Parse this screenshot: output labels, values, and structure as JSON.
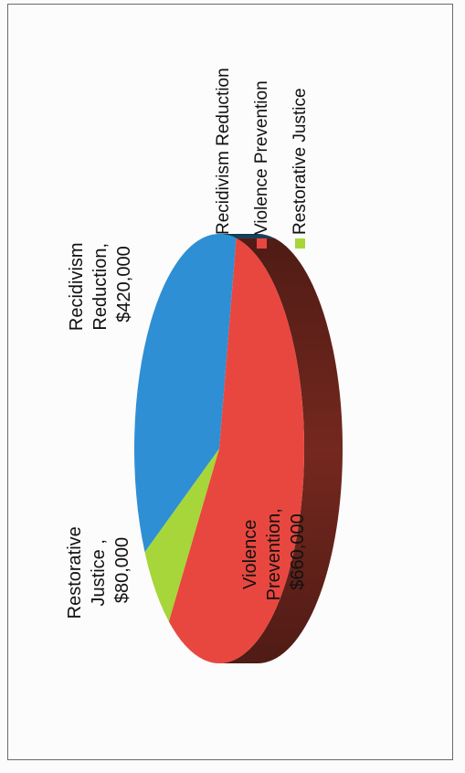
{
  "chart_data": {
    "type": "pie",
    "title": "",
    "categories": [
      "Recidivism Reduction",
      "Violence Prevention",
      "Restorative Justice"
    ],
    "values": [
      420000,
      660000,
      80000
    ],
    "data_labels": [
      [
        "Recidivism",
        "Reduction,",
        "$420,000"
      ],
      [
        "Violence",
        "Prevention,",
        "$660,000"
      ],
      [
        "Restorative",
        "Justice ,",
        "$80,000"
      ]
    ],
    "colors": [
      "#2e8fd4",
      "#e8473f",
      "#a6d63a"
    ],
    "side_colors": [
      "#154a6c",
      "#7a2a20",
      "#566d1e"
    ],
    "legend_placement": "right (rotated)",
    "rotated": "90deg counter-clockwise",
    "three_d": true
  }
}
